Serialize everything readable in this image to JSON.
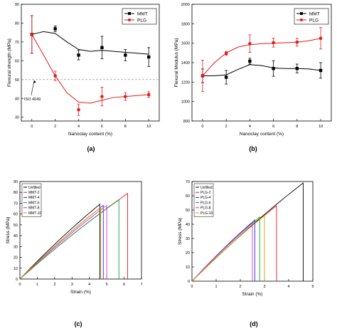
{
  "chart_data": [
    {
      "panel": "a",
      "caption": "(a)",
      "type": "line",
      "xlabel": "Nanoclay content (%)",
      "ylabel": "Flexural strength (MPa)",
      "x": [
        0,
        2,
        4,
        6,
        8,
        10
      ],
      "xlim": [
        -0.9,
        10.9
      ],
      "ylim": [
        28,
        90
      ],
      "xticks": [
        0,
        2,
        4,
        6,
        8,
        10
      ],
      "yticks": [
        30,
        40,
        50,
        60,
        70,
        80,
        90
      ],
      "legend_position": "top-right",
      "series": [
        {
          "name": "MMT",
          "color": "#000000",
          "marker": "square",
          "values": [
            74,
            77,
            63,
            67,
            63,
            62
          ],
          "errors": [
            10,
            1.5,
            2.5,
            6,
            3,
            5
          ]
        },
        {
          "name": "PLG",
          "color": "#e41a1c",
          "marker": "circle",
          "values": [
            74,
            52,
            34,
            41,
            41,
            42
          ],
          "errors": [
            10,
            2.5,
            3,
            5,
            2,
            1.5
          ]
        }
      ],
      "curves": [
        {
          "color": "#000000",
          "points": [
            [
              0,
              74
            ],
            [
              1,
              75.5
            ],
            [
              2,
              74.5
            ],
            [
              3,
              70
            ],
            [
              4,
              66
            ],
            [
              5,
              65
            ],
            [
              6,
              65.5
            ],
            [
              7,
              65
            ],
            [
              8,
              64.5
            ],
            [
              9,
              64
            ],
            [
              10,
              63.5
            ]
          ]
        },
        {
          "color": "#e41a1c",
          "points": [
            [
              0,
              74
            ],
            [
              1,
              63
            ],
            [
              2,
              52
            ],
            [
              3,
              43
            ],
            [
              4,
              38
            ],
            [
              5,
              37.5
            ],
            [
              6,
              39
            ],
            [
              7,
              40.5
            ],
            [
              8,
              41
            ],
            [
              9,
              41.5
            ],
            [
              10,
              42
            ]
          ]
        }
      ],
      "reference_line": {
        "value": 50,
        "label": "ISO 4049"
      }
    },
    {
      "panel": "b",
      "caption": "(b)",
      "type": "line",
      "xlabel": "Nanoclay content (%)",
      "ylabel": "Flexural Modulus (MPa)",
      "x": [
        0,
        2,
        4,
        6,
        8,
        10
      ],
      "xlim": [
        -0.9,
        10.9
      ],
      "ylim": [
        800,
        2000
      ],
      "xticks": [
        0,
        2,
        4,
        6,
        8,
        10
      ],
      "yticks": [
        800,
        1000,
        1200,
        1400,
        1600,
        1800,
        2000
      ],
      "legend_position": "top-right",
      "series": [
        {
          "name": "MMT",
          "color": "#000000",
          "marker": "square",
          "values": [
            1265,
            1250,
            1415,
            1340,
            1340,
            1320
          ],
          "errors": [
            70,
            70,
            30,
            80,
            45,
            80
          ]
        },
        {
          "name": "PLG",
          "color": "#e41a1c",
          "marker": "circle",
          "values": [
            1265,
            1495,
            1595,
            1605,
            1610,
            1650
          ],
          "errors": [
            160,
            20,
            90,
            45,
            40,
            110
          ]
        }
      ],
      "curves": [
        {
          "color": "#000000",
          "points": [
            [
              0,
              1265
            ],
            [
              1,
              1265
            ],
            [
              2,
              1275
            ],
            [
              3,
              1330
            ],
            [
              4,
              1380
            ],
            [
              5,
              1370
            ],
            [
              6,
              1345
            ],
            [
              7,
              1340
            ],
            [
              8,
              1340
            ],
            [
              9,
              1335
            ],
            [
              10,
              1320
            ]
          ]
        },
        {
          "color": "#e41a1c",
          "points": [
            [
              0,
              1265
            ],
            [
              1,
              1400
            ],
            [
              2,
              1500
            ],
            [
              3,
              1560
            ],
            [
              4,
              1585
            ],
            [
              5,
              1595
            ],
            [
              6,
              1600
            ],
            [
              7,
              1605
            ],
            [
              8,
              1610
            ],
            [
              9,
              1625
            ],
            [
              10,
              1650
            ]
          ]
        }
      ]
    },
    {
      "panel": "c",
      "caption": "(c)",
      "type": "line",
      "xlabel": "Strain (%)",
      "ylabel": "Stress (MPa)",
      "xlim": [
        0,
        7
      ],
      "ylim": [
        0,
        90
      ],
      "xticks": [
        0,
        1,
        2,
        3,
        4,
        5,
        6,
        7
      ],
      "yticks": [
        0,
        10,
        20,
        30,
        40,
        50,
        60,
        70,
        80,
        90
      ],
      "legend_position": "top-left",
      "series": [
        {
          "name": "Unfilled",
          "color": "#000000",
          "values": [
            [
              0,
              0
            ],
            [
              4.6,
              69
            ]
          ]
        },
        {
          "name": "MMT-2",
          "color": "#e41a1c",
          "values": [
            [
              0,
              0
            ],
            [
              6.2,
              79
            ]
          ]
        },
        {
          "name": "MMT-4",
          "color": "#2b2bd6",
          "values": [
            [
              0,
              0
            ],
            [
              4.8,
              68
            ]
          ]
        },
        {
          "name": "MMT-6",
          "color": "#1b9e3a",
          "values": [
            [
              0,
              0
            ],
            [
              5.7,
              73
            ]
          ]
        },
        {
          "name": "MMT-8",
          "color": "#d62fd6",
          "values": [
            [
              0,
              0
            ],
            [
              5.0,
              68
            ]
          ]
        },
        {
          "name": "MMT-10",
          "color": "#c8a200",
          "values": [
            [
              0,
              0
            ],
            [
              4.65,
              66
            ]
          ]
        }
      ]
    },
    {
      "panel": "d",
      "caption": "(d)",
      "type": "line",
      "xlabel": "Strain (%)",
      "ylabel": "Stress (MPa)",
      "xlim": [
        0,
        5
      ],
      "ylim": [
        0,
        70
      ],
      "xticks": [
        0,
        1,
        2,
        3,
        4,
        5
      ],
      "yticks": [
        0,
        10,
        20,
        30,
        40,
        50,
        60,
        70
      ],
      "legend_position": "top-left",
      "series": [
        {
          "name": "Unfilled",
          "color": "#000000",
          "values": [
            [
              0,
              0
            ],
            [
              4.6,
              69
            ]
          ]
        },
        {
          "name": "PLG-2",
          "color": "#e41a1c",
          "values": [
            [
              0,
              0
            ],
            [
              3.5,
              53
            ]
          ]
        },
        {
          "name": "PLG-4",
          "color": "#2b2bd6",
          "values": [
            [
              0,
              0
            ],
            [
              2.6,
              43
            ]
          ]
        },
        {
          "name": "PLG-6",
          "color": "#1b9e3a",
          "values": [
            [
              0,
              0
            ],
            [
              2.8,
              45
            ]
          ]
        },
        {
          "name": "PLG-8",
          "color": "#d62fd6",
          "values": [
            [
              0,
              0
            ],
            [
              2.5,
              41
            ]
          ]
        },
        {
          "name": "PLG-10",
          "color": "#c8a200",
          "values": [
            [
              0,
              0
            ],
            [
              3.0,
              46
            ]
          ]
        }
      ]
    }
  ]
}
